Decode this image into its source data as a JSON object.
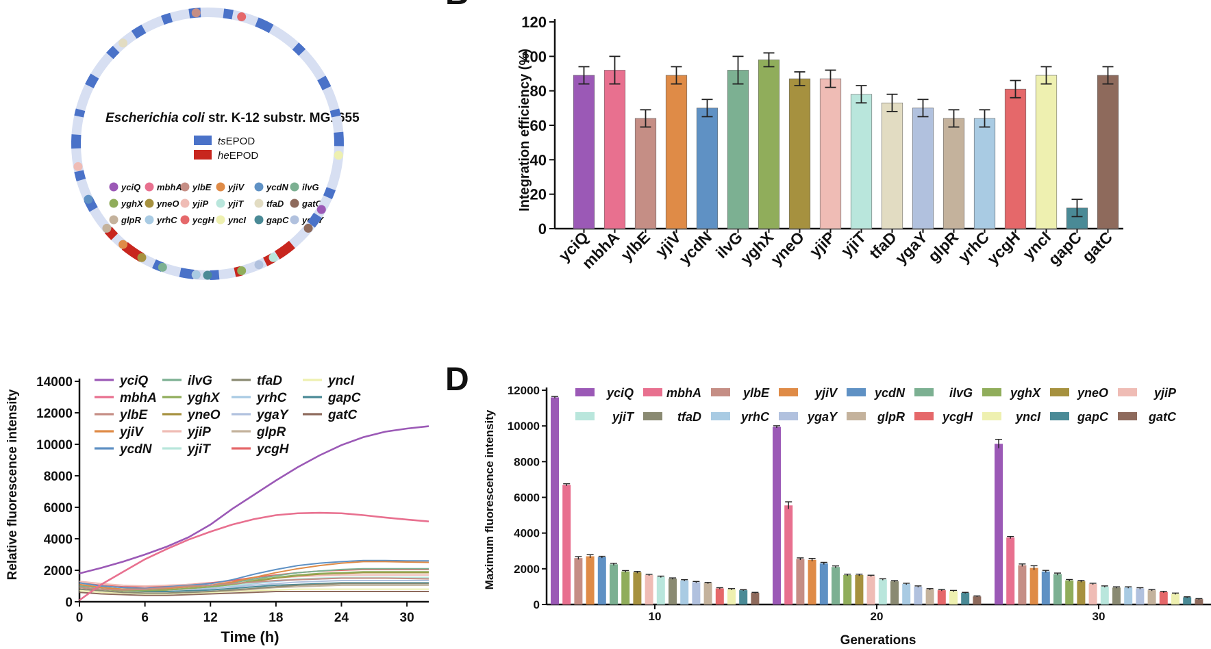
{
  "panel_labels": {
    "b": "B",
    "d": "D"
  },
  "genome": {
    "title_italic": "Escherichia coli",
    "title_rest": " str. K-12 substr. MG1655",
    "legend": [
      {
        "italic": "ts",
        "rest": "EPOD",
        "color": "#4a72c8"
      },
      {
        "italic": "he",
        "rest": "EPOD",
        "color": "#c8261e"
      }
    ],
    "ring_color": "#d7dff2",
    "gene_dots": [
      {
        "name": "yciQ",
        "color": "#9b59b6"
      },
      {
        "name": "mbhA",
        "color": "#e8708f"
      },
      {
        "name": "ylbE",
        "color": "#c58e85"
      },
      {
        "name": "yjiV",
        "color": "#df8b47"
      },
      {
        "name": "ycdN",
        "color": "#5f91c4"
      },
      {
        "name": "ilvG",
        "color": "#7cb092"
      },
      {
        "name": "yghX",
        "color": "#90ad5b"
      },
      {
        "name": "yneO",
        "color": "#a6913f"
      },
      {
        "name": "yjiP",
        "color": "#efbcb5"
      },
      {
        "name": "yjiT",
        "color": "#b9e6dc"
      },
      {
        "name": "tfaD",
        "color": "#e2dcc2"
      },
      {
        "name": "gatC",
        "color": "#8e6a5c"
      },
      {
        "name": "glpR",
        "color": "#c4b29c"
      },
      {
        "name": "yrhC",
        "color": "#a9cbe3"
      },
      {
        "name": "ycgH",
        "color": "#e5686a"
      },
      {
        "name": "yncI",
        "color": "#eef0b0"
      },
      {
        "name": "gapC",
        "color": "#4a8a96"
      },
      {
        "name": "ygaY",
        "color": "#b1c1de"
      }
    ]
  },
  "chart_data": [
    {
      "type": "bar",
      "ylabel": "Integration efficiency (%)",
      "ylim": [
        0,
        120
      ],
      "yticks": [
        "0",
        "20",
        "40",
        "60",
        "80",
        "100",
        "120"
      ],
      "categories": [
        "yciQ",
        "mbhA",
        "ylbE",
        "yjiV",
        "ycdN",
        "ilvG",
        "yghX",
        "yneO",
        "yjiP",
        "yjiT",
        "tfaD",
        "ygaY",
        "glpR",
        "yrhC",
        "ycgH",
        "yncI",
        "gapC",
        "gatC"
      ],
      "values": [
        89,
        92,
        64,
        89,
        70,
        92,
        98,
        87,
        87,
        78,
        73,
        70,
        64,
        64,
        81,
        89,
        12,
        89
      ],
      "errors": [
        5,
        8,
        5,
        5,
        5,
        8,
        4,
        4,
        5,
        5,
        5,
        5,
        5,
        5,
        5,
        5,
        5,
        5
      ],
      "colors": [
        "#9b59b6",
        "#e8708f",
        "#c58e85",
        "#df8b47",
        "#5f91c4",
        "#7cb092",
        "#90ad5b",
        "#a6913f",
        "#efbcb5",
        "#b9e6dc",
        "#e2dcc2",
        "#b1c1de",
        "#c4b29c",
        "#a9cbe3",
        "#e5686a",
        "#eef0b0",
        "#4a8a96",
        "#8e6a5c"
      ]
    },
    {
      "type": "line",
      "xlabel": "Time (h)",
      "ylabel": "Relative fluorescence intensity",
      "xlim": [
        0,
        32
      ],
      "ylim": [
        0,
        14000
      ],
      "xticks": [
        "0",
        "6",
        "12",
        "18",
        "24",
        "30"
      ],
      "yticks": [
        "0",
        "2000",
        "4000",
        "6000",
        "8000",
        "10000",
        "12000",
        "14000"
      ],
      "x": [
        0,
        2,
        4,
        6,
        8,
        10,
        12,
        14,
        16,
        18,
        20,
        22,
        24,
        26,
        28,
        30,
        32
      ],
      "legend_order": [
        "yciQ",
        "mbhA",
        "ylbE",
        "yjiV",
        "ycdN",
        "ilvG",
        "yghX",
        "yneO",
        "yjiP",
        "yjiT",
        "tfaD",
        "yrhC",
        "ygaY",
        "glpR",
        "ycgH",
        "yncI",
        "gapC",
        "gatC"
      ],
      "series": [
        {
          "name": "yciQ",
          "color": "#9b59b6",
          "values": [
            1800,
            2150,
            2550,
            3000,
            3500,
            4100,
            4900,
            5900,
            6800,
            7700,
            8550,
            9300,
            9950,
            10450,
            10800,
            11000,
            11150
          ]
        },
        {
          "name": "mbhA",
          "color": "#e8708f",
          "values": [
            100,
            1100,
            1900,
            2700,
            3350,
            3950,
            4450,
            4900,
            5250,
            5500,
            5620,
            5650,
            5620,
            5500,
            5350,
            5220,
            5100
          ]
        },
        {
          "name": "ylbE",
          "color": "#c58e85",
          "values": [
            900,
            800,
            750,
            800,
            900,
            1000,
            1050,
            1150,
            1250,
            1350,
            1400,
            1450,
            1500,
            1500,
            1500,
            1480,
            1450
          ]
        },
        {
          "name": "yjiV",
          "color": "#df8b47",
          "values": [
            1100,
            900,
            800,
            800,
            850,
            950,
            1050,
            1250,
            1550,
            1850,
            2100,
            2300,
            2450,
            2550,
            2550,
            2520,
            2500
          ]
        },
        {
          "name": "ycdN",
          "color": "#5f91c4",
          "values": [
            1200,
            1000,
            900,
            850,
            950,
            1050,
            1150,
            1400,
            1750,
            2050,
            2300,
            2450,
            2550,
            2620,
            2620,
            2600,
            2600
          ]
        },
        {
          "name": "ilvG",
          "color": "#7cb092",
          "values": [
            1000,
            900,
            800,
            800,
            850,
            950,
            1050,
            1200,
            1450,
            1650,
            1850,
            1950,
            2050,
            2100,
            2100,
            2100,
            2100
          ]
        },
        {
          "name": "yghX",
          "color": "#90ad5b",
          "values": [
            900,
            800,
            700,
            700,
            750,
            850,
            950,
            1100,
            1350,
            1550,
            1700,
            1800,
            1850,
            1900,
            1900,
            1900,
            1900
          ]
        },
        {
          "name": "yneO",
          "color": "#a6913f",
          "values": [
            900,
            800,
            700,
            700,
            750,
            850,
            950,
            1100,
            1300,
            1500,
            1650,
            1750,
            1800,
            1850,
            1850,
            1850,
            1850
          ]
        },
        {
          "name": "yjiP",
          "color": "#efbcb5",
          "values": [
            1300,
            1150,
            1050,
            1000,
            1050,
            1100,
            1150,
            1250,
            1400,
            1500,
            1600,
            1650,
            1700,
            1700,
            1700,
            1700,
            1700
          ]
        },
        {
          "name": "yjiT",
          "color": "#b9e6dc",
          "values": [
            1100,
            1000,
            900,
            850,
            850,
            900,
            950,
            1050,
            1200,
            1350,
            1450,
            1500,
            1550,
            1550,
            1550,
            1550,
            1550
          ]
        },
        {
          "name": "tfaD",
          "color": "#8a8a72",
          "values": [
            800,
            700,
            600,
            550,
            550,
            600,
            650,
            750,
            850,
            950,
            1050,
            1100,
            1150,
            1150,
            1150,
            1150,
            1150
          ]
        },
        {
          "name": "yrhC",
          "color": "#a9cbe3",
          "values": [
            1000,
            900,
            800,
            750,
            800,
            850,
            900,
            1000,
            1150,
            1300,
            1400,
            1450,
            1500,
            1500,
            1500,
            1500,
            1500
          ]
        },
        {
          "name": "ygaY",
          "color": "#b1c1de",
          "values": [
            1000,
            900,
            800,
            750,
            750,
            800,
            850,
            950,
            1050,
            1150,
            1250,
            1300,
            1350,
            1350,
            1350,
            1350,
            1350
          ]
        },
        {
          "name": "glpR",
          "color": "#c4b29c",
          "values": [
            800,
            700,
            600,
            550,
            550,
            600,
            650,
            700,
            800,
            900,
            950,
            1000,
            1050,
            1050,
            1050,
            1050,
            1050
          ]
        },
        {
          "name": "ycgH",
          "color": "#e5686a",
          "values": [
            1200,
            1050,
            950,
            950,
            1000,
            1100,
            1200,
            1350,
            1550,
            1700,
            1850,
            1950,
            2000,
            2050,
            2050,
            2050,
            2050
          ]
        },
        {
          "name": "yncI",
          "color": "#eef0b0",
          "values": [
            700,
            600,
            550,
            500,
            500,
            550,
            600,
            650,
            700,
            750,
            800,
            800,
            800,
            800,
            800,
            800,
            800
          ]
        },
        {
          "name": "gapC",
          "color": "#4a8a96",
          "values": [
            900,
            800,
            700,
            650,
            650,
            700,
            750,
            850,
            950,
            1050,
            1100,
            1150,
            1200,
            1200,
            1200,
            1200,
            1200
          ]
        },
        {
          "name": "gatC",
          "color": "#8e6a5c",
          "values": [
            600,
            500,
            450,
            400,
            400,
            450,
            500,
            550,
            600,
            650,
            650,
            650,
            650,
            650,
            650,
            650,
            650
          ]
        }
      ]
    },
    {
      "type": "bar",
      "xlabel": "Generations",
      "ylabel": "Maximum fluorescence intensity",
      "ylim": [
        0,
        12000
      ],
      "yticks": [
        "0",
        "2000",
        "4000",
        "6000",
        "8000",
        "10000",
        "12000"
      ],
      "categories": [
        "10",
        "20",
        "30"
      ],
      "legend_order": [
        "yciQ",
        "mbhA",
        "ylbE",
        "yjiV",
        "ycdN",
        "ilvG",
        "yghX",
        "yneO",
        "yjiP",
        "yjiT",
        "tfaD",
        "yrhC",
        "ygaY",
        "glpR",
        "ycgH",
        "yncI",
        "gapC",
        "gatC"
      ],
      "series_colors": [
        "#9b59b6",
        "#e8708f",
        "#c58e85",
        "#df8b47",
        "#5f91c4",
        "#7cb092",
        "#90ad5b",
        "#a6913f",
        "#efbcb5",
        "#b9e6dc",
        "#8a8a72",
        "#a9cbe3",
        "#b1c1de",
        "#c4b29c",
        "#e5686a",
        "#eef0b0",
        "#4a8a96",
        "#8e6a5c"
      ],
      "groups": [
        {
          "values": [
            11600,
            6700,
            2600,
            2700,
            2650,
            2250,
            1850,
            1800,
            1650,
            1550,
            1450,
            1350,
            1250,
            1200,
            900,
            850,
            800,
            650
          ]
        },
        {
          "values": [
            9950,
            5550,
            2550,
            2500,
            2300,
            2100,
            1650,
            1650,
            1600,
            1400,
            1300,
            1150,
            1000,
            850,
            800,
            750,
            650,
            450
          ]
        },
        {
          "values": [
            9000,
            3750,
            2200,
            2050,
            1850,
            1700,
            1350,
            1300,
            1150,
            1000,
            950,
            950,
            900,
            800,
            700,
            600,
            400,
            300
          ]
        }
      ],
      "errors": [
        [
          50,
          60,
          80,
          90,
          50,
          60,
          50,
          50,
          40,
          40,
          40,
          40,
          40,
          40,
          40,
          40,
          30,
          30
        ],
        [
          60,
          200,
          60,
          80,
          60,
          60,
          50,
          50,
          40,
          40,
          40,
          40,
          40,
          40,
          40,
          40,
          30,
          30
        ],
        [
          250,
          60,
          70,
          120,
          60,
          60,
          50,
          50,
          40,
          40,
          40,
          40,
          40,
          40,
          40,
          40,
          30,
          30
        ]
      ]
    }
  ]
}
